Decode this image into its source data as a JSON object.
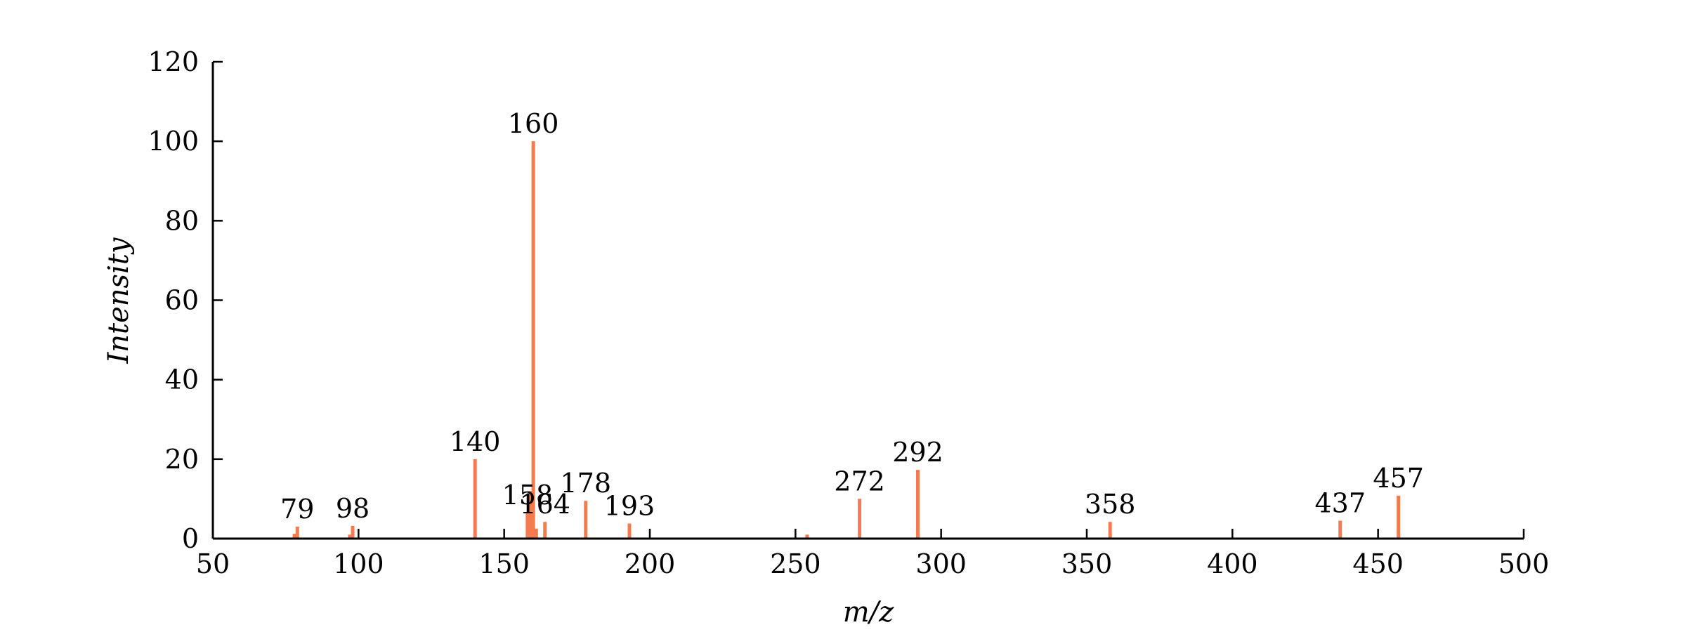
{
  "chart_data": {
    "type": "bar",
    "title": "",
    "xlabel": "m/z",
    "ylabel": "Intensity",
    "xlim": [
      50,
      500
    ],
    "ylim": [
      0,
      120
    ],
    "x_ticks": [
      50,
      100,
      150,
      200,
      250,
      300,
      350,
      400,
      450,
      500
    ],
    "y_ticks": [
      0,
      20,
      40,
      60,
      80,
      100,
      120
    ],
    "grid": false,
    "bar_color": "#f47a4f",
    "peaks": [
      {
        "mz": 78,
        "intensity": 1.2,
        "label": ""
      },
      {
        "mz": 79,
        "intensity": 3.0,
        "label": "79"
      },
      {
        "mz": 97,
        "intensity": 1.0,
        "label": ""
      },
      {
        "mz": 98,
        "intensity": 3.2,
        "label": "98"
      },
      {
        "mz": 140,
        "intensity": 20.0,
        "label": "140"
      },
      {
        "mz": 158,
        "intensity": 6.5,
        "label": "158"
      },
      {
        "mz": 159,
        "intensity": 12.0,
        "label": ""
      },
      {
        "mz": 160,
        "intensity": 100.0,
        "label": "160"
      },
      {
        "mz": 161,
        "intensity": 2.5,
        "label": ""
      },
      {
        "mz": 164,
        "intensity": 4.2,
        "label": "164"
      },
      {
        "mz": 178,
        "intensity": 9.5,
        "label": "178"
      },
      {
        "mz": 193,
        "intensity": 3.8,
        "label": "193"
      },
      {
        "mz": 254,
        "intensity": 1.0,
        "label": ""
      },
      {
        "mz": 272,
        "intensity": 10.0,
        "label": "272"
      },
      {
        "mz": 292,
        "intensity": 17.3,
        "label": "292"
      },
      {
        "mz": 358,
        "intensity": 4.2,
        "label": "358"
      },
      {
        "mz": 437,
        "intensity": 4.5,
        "label": "437"
      },
      {
        "mz": 457,
        "intensity": 10.8,
        "label": "457"
      }
    ]
  }
}
